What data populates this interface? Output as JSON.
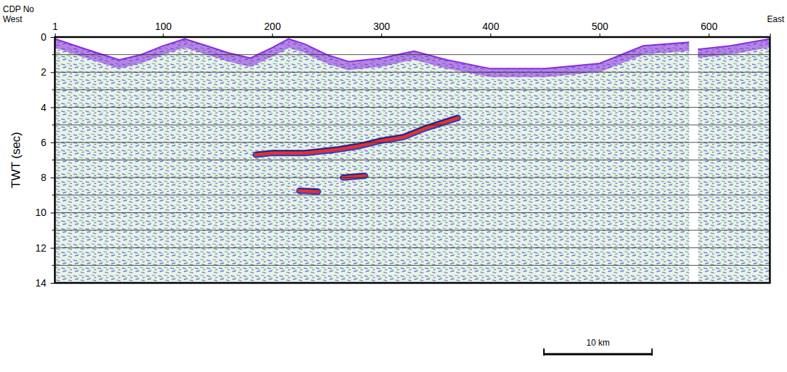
{
  "chart_data": {
    "type": "line",
    "x_label": "CDP No",
    "y_label": "TWT (sec)",
    "annotations": [
      {
        "text": "West"
      },
      {
        "text": "East"
      }
    ],
    "xlim": [
      1,
      656
    ],
    "xticks": [
      1,
      100,
      200,
      300,
      400,
      500,
      600
    ],
    "ylim": [
      0,
      14
    ],
    "yticks": [
      0,
      2,
      4,
      6,
      8,
      10,
      12,
      14
    ],
    "y_minor_ticks": [
      1,
      3,
      5,
      7,
      9,
      11,
      13
    ],
    "grid": true,
    "data_gap": [
      582,
      590
    ],
    "scale_bar": {
      "label": "10 km",
      "x": [
        449,
        548
      ]
    },
    "series": [
      {
        "type": "area",
        "color": "#8a2be2",
        "x": [
          1,
          20,
          40,
          60,
          80,
          100,
          120,
          140,
          160,
          180,
          200,
          215,
          230,
          250,
          270,
          300,
          330,
          360,
          400,
          450,
          500,
          540,
          582,
          590,
          620,
          656
        ],
        "values": [
          0.1,
          0.5,
          0.9,
          1.3,
          1.0,
          0.5,
          0.1,
          0.5,
          0.9,
          1.2,
          0.6,
          0.1,
          0.4,
          1.0,
          1.4,
          1.2,
          0.8,
          1.3,
          1.8,
          1.8,
          1.5,
          0.5,
          0.3,
          0.7,
          0.5,
          0.1
        ]
      },
      {
        "type": "line",
        "color": "#e0303a",
        "x": [
          185,
          200,
          230,
          260,
          280,
          300,
          320,
          340,
          370
        ],
        "values": [
          6.7,
          6.6,
          6.6,
          6.4,
          6.2,
          5.9,
          5.7,
          5.2,
          4.6
        ]
      },
      {
        "type": "line",
        "color": "#e0303a",
        "x": [
          265,
          285
        ],
        "values": [
          8.0,
          7.9
        ]
      },
      {
        "type": "line",
        "color": "#e0303a",
        "x": [
          225,
          242
        ],
        "values": [
          8.75,
          8.8
        ]
      }
    ]
  }
}
